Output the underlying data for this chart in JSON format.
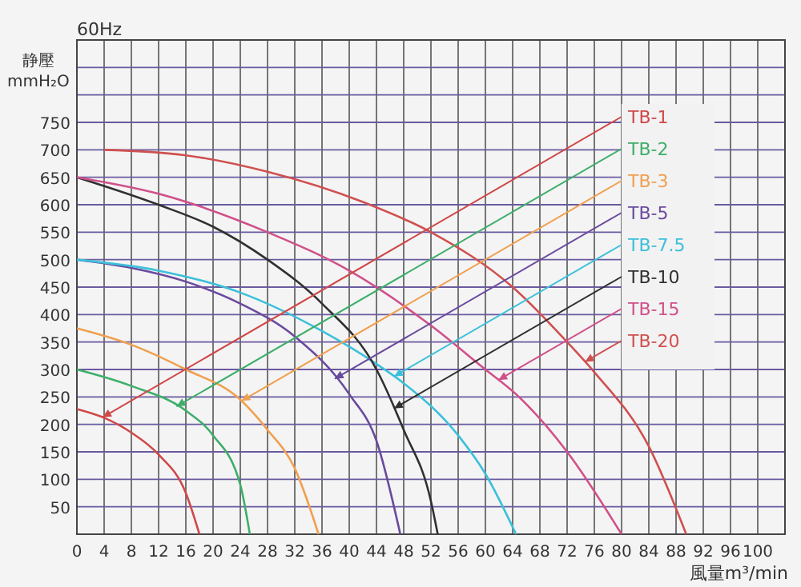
{
  "chart_data": {
    "type": "line",
    "title": "60Hz",
    "xlabel": "風量m³/min",
    "ylabel": "静壓 mmH₂O",
    "xlim": [
      0,
      104
    ],
    "ylim": [
      0,
      900
    ],
    "xticks": [
      0,
      4,
      8,
      12,
      16,
      20,
      24,
      28,
      32,
      36,
      40,
      44,
      48,
      52,
      56,
      60,
      64,
      68,
      72,
      76,
      80,
      84,
      88,
      92,
      96,
      100
    ],
    "yticks": [
      {
        "value": 0,
        "label": null
      },
      50,
      100,
      150,
      200,
      250,
      300,
      350,
      400,
      450,
      500,
      550,
      600,
      650,
      700,
      750,
      {
        "value": 800,
        "label": null
      },
      {
        "value": 850,
        "label": null
      },
      {
        "value": 900,
        "label": null
      }
    ],
    "grid": true,
    "legend": "right",
    "line_style": "solid",
    "series": [
      {
        "name": "TB-1",
        "color": "#d04848",
        "x": [
          0,
          4,
          8,
          12,
          16,
          18
        ],
        "values": [
          228,
          212,
          185,
          145,
          75,
          0
        ]
      },
      {
        "name": "TB-2",
        "color": "#3fae6a",
        "x": [
          0,
          8,
          16,
          20,
          24,
          25.4
        ],
        "values": [
          300,
          270,
          225,
          180,
          90,
          0
        ]
      },
      {
        "name": "TB-3",
        "color": "#f0a050",
        "x": [
          0,
          8,
          16,
          24,
          28,
          32,
          35.5
        ],
        "values": [
          375,
          345,
          300,
          245,
          190,
          120,
          0
        ]
      },
      {
        "name": "TB-5",
        "color": "#6a4a9e",
        "x": [
          0,
          8,
          16,
          24,
          32,
          40,
          44,
          47.5
        ],
        "values": [
          500,
          485,
          460,
          420,
          360,
          255,
          170,
          0
        ]
      },
      {
        "name": "TB-7.5",
        "color": "#3cc0da",
        "x": [
          0,
          12,
          24,
          36,
          44,
          48,
          56,
          60,
          64.5
        ],
        "values": [
          500,
          480,
          440,
          370,
          310,
          275,
          180,
          110,
          0
        ]
      },
      {
        "name": "TB-10",
        "color": "#303030",
        "x": [
          0,
          12,
          20,
          28,
          36,
          44,
          48,
          52,
          53
        ],
        "values": [
          650,
          600,
          560,
          500,
          420,
          300,
          190,
          60,
          0
        ]
      },
      {
        "name": "TB-15",
        "color": "#d0508a",
        "x": [
          0,
          12,
          28,
          40,
          52,
          60,
          64.5,
          72,
          80
        ],
        "values": [
          650,
          620,
          550,
          480,
          380,
          300,
          255,
          150,
          0
        ]
      },
      {
        "name": "TB-20",
        "color": "#d05050",
        "x": [
          4,
          16,
          28,
          42,
          52,
          64,
          72,
          76,
          84,
          89.5
        ],
        "values": [
          700,
          690,
          660,
          605,
          550,
          450,
          350,
          295,
          160,
          0
        ]
      }
    ]
  }
}
